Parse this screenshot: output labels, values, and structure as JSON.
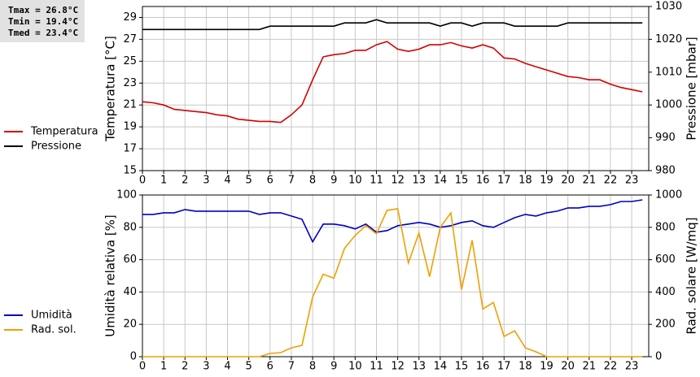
{
  "chart_data": [
    {
      "type": "line",
      "annotations": [
        "Tmax = 26.8°C",
        "Tmin = 19.4°C",
        "Tmed = 23.4°C"
      ],
      "y_label": "Temperatura [°C]",
      "y2_label": "Pressione [mbar]",
      "legend": "left",
      "grid": true,
      "x": [
        0,
        0.5,
        1,
        1.5,
        2,
        2.5,
        3,
        3.5,
        4,
        4.5,
        5,
        5.5,
        6,
        6.5,
        7,
        7.5,
        8,
        8.5,
        9,
        9.5,
        10,
        10.5,
        11,
        11.5,
        12,
        12.5,
        13,
        13.5,
        14,
        14.5,
        15,
        15.5,
        16,
        16.5,
        17,
        17.5,
        18,
        18.5,
        19,
        19.5,
        20,
        20.5,
        21,
        21.5,
        22,
        22.5,
        23,
        23.5
      ],
      "xlim": [
        0,
        23.8
      ],
      "xticks": [
        0,
        1,
        2,
        3,
        4,
        5,
        6,
        7,
        8,
        9,
        10,
        11,
        12,
        13,
        14,
        15,
        16,
        17,
        18,
        19,
        20,
        21,
        22,
        23
      ],
      "ylim": [
        15,
        30
      ],
      "yticks": [
        15,
        17,
        19,
        21,
        23,
        25,
        27,
        29
      ],
      "y2lim": [
        980,
        1030
      ],
      "y2ticks": [
        980,
        990,
        1000,
        1010,
        1020,
        1030
      ],
      "series": [
        {
          "name": "Temperatura",
          "color": "#d40000",
          "values": [
            21.3,
            21.2,
            21.0,
            20.6,
            20.5,
            20.4,
            20.3,
            20.1,
            20.0,
            19.7,
            19.6,
            19.5,
            19.5,
            19.4,
            20.1,
            21.0,
            23.3,
            25.4,
            25.6,
            25.7,
            26.0,
            26.0,
            26.5,
            26.8,
            26.1,
            25.9,
            26.1,
            26.5,
            26.5,
            26.7,
            26.4,
            26.2,
            26.5,
            26.2,
            25.3,
            25.2,
            24.8,
            24.5,
            24.2,
            23.9,
            23.6,
            23.5,
            23.3,
            23.3,
            22.9,
            22.6,
            22.4,
            22.2
          ]
        },
        {
          "name": "Pressione",
          "color": "#000000",
          "axis": "y2",
          "values": [
            1023,
            1023,
            1023,
            1023,
            1023,
            1023,
            1023,
            1023,
            1023,
            1023,
            1023,
            1023,
            1024,
            1024,
            1024,
            1024,
            1024,
            1024,
            1024,
            1025,
            1025,
            1025,
            1026,
            1025,
            1025,
            1025,
            1025,
            1025,
            1024,
            1025,
            1025,
            1024,
            1025,
            1025,
            1025,
            1024,
            1024,
            1024,
            1024,
            1024,
            1025,
            1025,
            1025,
            1025,
            1025,
            1025,
            1025,
            1025
          ]
        }
      ]
    },
    {
      "type": "line",
      "y_label": "Umidità relativa [%]",
      "y2_label": "Rad. solare [W/mq]",
      "legend": "left",
      "grid": true,
      "x": [
        0,
        0.5,
        1,
        1.5,
        2,
        2.5,
        3,
        3.5,
        4,
        4.5,
        5,
        5.5,
        6,
        6.5,
        7,
        7.5,
        8,
        8.5,
        9,
        9.5,
        10,
        10.5,
        11,
        11.5,
        12,
        12.5,
        13,
        13.5,
        14,
        14.5,
        15,
        15.5,
        16,
        16.5,
        17,
        17.5,
        18,
        18.5,
        19,
        19.5,
        20,
        20.5,
        21,
        21.5,
        22,
        22.5,
        23,
        23.5
      ],
      "xlim": [
        0,
        23.8
      ],
      "xticks": [
        0,
        1,
        2,
        3,
        4,
        5,
        6,
        7,
        8,
        9,
        10,
        11,
        12,
        13,
        14,
        15,
        16,
        17,
        18,
        19,
        20,
        21,
        22,
        23
      ],
      "ylim": [
        0,
        100
      ],
      "yticks": [
        0,
        20,
        40,
        60,
        80,
        100
      ],
      "y2lim": [
        0,
        1000
      ],
      "y2ticks": [
        0,
        200,
        400,
        600,
        800,
        1000
      ],
      "series": [
        {
          "name": "Umidità",
          "color": "#0000c0",
          "values": [
            88,
            88,
            89,
            89,
            91,
            90,
            90,
            90,
            90,
            90,
            90,
            88,
            89,
            89,
            87,
            85,
            71,
            82,
            82,
            81,
            79,
            82,
            77,
            78,
            81,
            82,
            83,
            82,
            80,
            81,
            83,
            84,
            81,
            80,
            83,
            86,
            88,
            87,
            89,
            90,
            92,
            92,
            93,
            93,
            94,
            96,
            96,
            97
          ]
        },
        {
          "name": "Rad. sol.",
          "color": "#f0a000",
          "axis": "y2",
          "values": [
            0,
            0,
            0,
            0,
            0,
            0,
            0,
            0,
            0,
            0,
            0,
            0,
            20,
            25,
            55,
            70,
            370,
            510,
            485,
            670,
            750,
            810,
            760,
            905,
            915,
            580,
            765,
            495,
            800,
            890,
            415,
            720,
            295,
            335,
            125,
            160,
            55,
            30,
            0,
            0,
            0,
            0,
            0,
            0,
            0,
            0,
            0,
            0
          ]
        }
      ]
    }
  ]
}
